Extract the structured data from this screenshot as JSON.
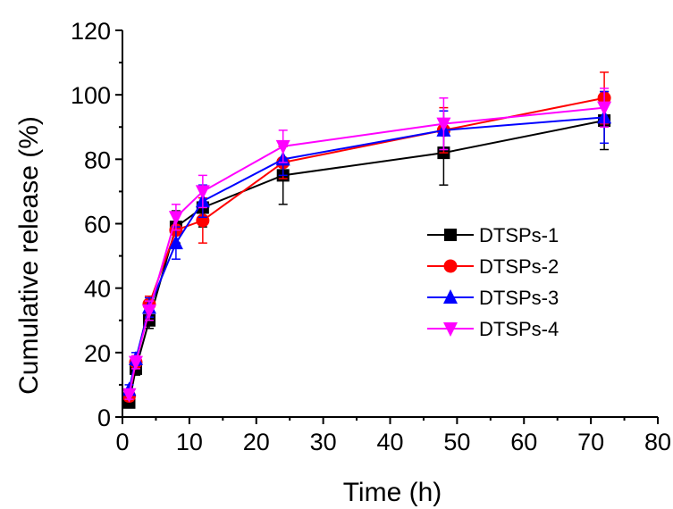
{
  "chart_data": {
    "type": "line",
    "xlabel": "Time (h)",
    "ylabel": "Cumulative release (%)",
    "xlim": [
      0,
      80
    ],
    "ylim": [
      0,
      120
    ],
    "xticks": [
      "0",
      "10",
      "20",
      "30",
      "40",
      "50",
      "60",
      "70",
      "80"
    ],
    "yticks": [
      "0",
      "20",
      "40",
      "60",
      "80",
      "100",
      "120"
    ],
    "x": [
      1,
      2,
      4,
      8,
      12,
      24,
      48,
      72
    ],
    "legend_position": "center-right",
    "grid": false,
    "series": [
      {
        "name": "DTSPs-1",
        "color": "#000000",
        "marker": "square",
        "values": [
          4.5,
          15,
          30,
          59,
          65,
          75,
          82,
          92
        ],
        "errors": [
          1.5,
          2,
          2.5,
          5,
          6,
          9,
          10,
          9
        ]
      },
      {
        "name": "DTSPs-2",
        "color": "#ff0000",
        "marker": "circle",
        "values": [
          6.5,
          17,
          35,
          58,
          61,
          79,
          89,
          99
        ],
        "errors": [
          1.5,
          2,
          2.5,
          5,
          7,
          5,
          7,
          8
        ]
      },
      {
        "name": "DTSPs-3",
        "color": "#0000ff",
        "marker": "triangle-up",
        "values": [
          8.5,
          18,
          34,
          54,
          67,
          80,
          89,
          93
        ],
        "errors": [
          1.5,
          2,
          3,
          5,
          5,
          5,
          6,
          8
        ]
      },
      {
        "name": "DTSPs-4",
        "color": "#ff00ff",
        "marker": "triangle-down",
        "values": [
          7,
          17,
          33,
          62,
          70,
          84,
          91,
          96
        ],
        "errors": [
          1.5,
          2,
          3,
          4,
          5,
          5,
          8,
          6
        ]
      }
    ]
  }
}
